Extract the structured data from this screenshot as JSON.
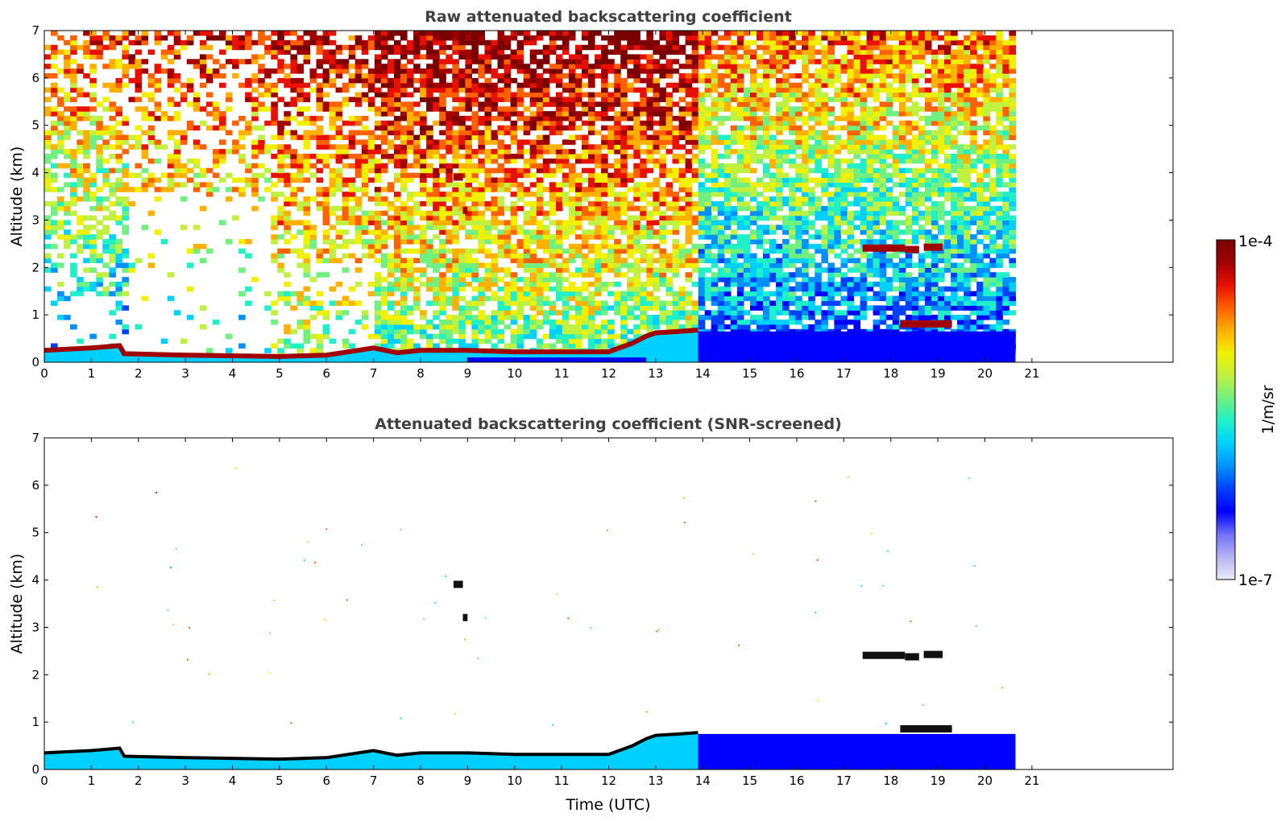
{
  "colors": {
    "colormap": [
      "#ecebf8",
      "#b4b4f4",
      "#7070fa",
      "#0000ff",
      "#0040ff",
      "#0090ff",
      "#00d0ff",
      "#20f0c8",
      "#70f080",
      "#c0f040",
      "#f0f000",
      "#ffb000",
      "#ff6000",
      "#e81000",
      "#a00000",
      "#7a0000"
    ],
    "frame": "#000000",
    "background": "#ffffff"
  },
  "colorbar": {
    "max_label": "1e-4",
    "min_label": "1e-7",
    "unit_label": "1/m/sr",
    "scale": "log"
  },
  "chart_data": [
    {
      "type": "heatmap",
      "title": "Raw attenuated backscattering coefficient",
      "xlabel": "",
      "ylabel": "Altitude (km)",
      "xlim": [
        0,
        24
      ],
      "ylim": [
        0,
        7
      ],
      "xticks": [
        "0",
        "1",
        "2",
        "3",
        "4",
        "5",
        "6",
        "7",
        "8",
        "9",
        "10",
        "11",
        "12",
        "13",
        "14",
        "15",
        "16",
        "17",
        "18",
        "19",
        "20",
        "21"
      ],
      "yticks": [
        "0",
        "1",
        "2",
        "3",
        "4",
        "5",
        "6",
        "7"
      ],
      "grid": false,
      "data_end_time": 20.65,
      "boundary_layer": {
        "time": [
          0,
          1,
          1.6,
          1.7,
          3,
          5,
          6,
          7,
          7.5,
          8,
          9,
          10,
          11,
          12,
          12.5,
          12.8,
          13,
          13.5,
          13.9
        ],
        "top_km": [
          0.25,
          0.3,
          0.35,
          0.18,
          0.15,
          0.12,
          0.15,
          0.3,
          0.2,
          0.25,
          0.25,
          0.22,
          0.22,
          0.22,
          0.4,
          0.55,
          0.62,
          0.65,
          0.68
        ]
      },
      "cloud_layers": [
        {
          "t_start": 17.4,
          "t_end": 18.3,
          "alt_km": 2.4
        },
        {
          "t_start": 18.3,
          "t_end": 18.6,
          "alt_km": 2.37
        },
        {
          "t_start": 18.7,
          "t_end": 19.1,
          "alt_km": 2.42
        },
        {
          "t_start": 8.7,
          "t_end": 8.9,
          "alt_km": 3.9
        },
        {
          "t_start": 8.9,
          "t_end": 9.0,
          "alt_km": 3.2
        },
        {
          "t_start": 18.2,
          "t_end": 19.3,
          "alt_km": 0.8
        }
      ]
    },
    {
      "type": "heatmap",
      "title": "Attenuated backscattering coefficient (SNR-screened)",
      "xlabel": "Time (UTC)",
      "ylabel": "Altitude (km)",
      "xlim": [
        0,
        24
      ],
      "ylim": [
        0,
        7
      ],
      "xticks": [
        "0",
        "1",
        "2",
        "3",
        "4",
        "5",
        "6",
        "7",
        "8",
        "9",
        "10",
        "11",
        "12",
        "13",
        "14",
        "15",
        "16",
        "17",
        "18",
        "19",
        "20",
        "21"
      ],
      "yticks": [
        "0",
        "1",
        "2",
        "3",
        "4",
        "5",
        "6",
        "7"
      ],
      "grid": false,
      "data_end_time": 20.65,
      "low_signal_layer_top_km": 0.75,
      "cloud_layers": [
        {
          "t_start": 17.4,
          "t_end": 18.3,
          "alt_km": 2.4
        },
        {
          "t_start": 18.3,
          "t_end": 18.6,
          "alt_km": 2.37
        },
        {
          "t_start": 18.7,
          "t_end": 19.1,
          "alt_km": 2.42
        },
        {
          "t_start": 8.7,
          "t_end": 8.9,
          "alt_km": 3.9
        },
        {
          "t_start": 8.9,
          "t_end": 9.0,
          "alt_km": 3.2
        },
        {
          "t_start": 18.2,
          "t_end": 19.3,
          "alt_km": 0.85
        }
      ]
    }
  ]
}
